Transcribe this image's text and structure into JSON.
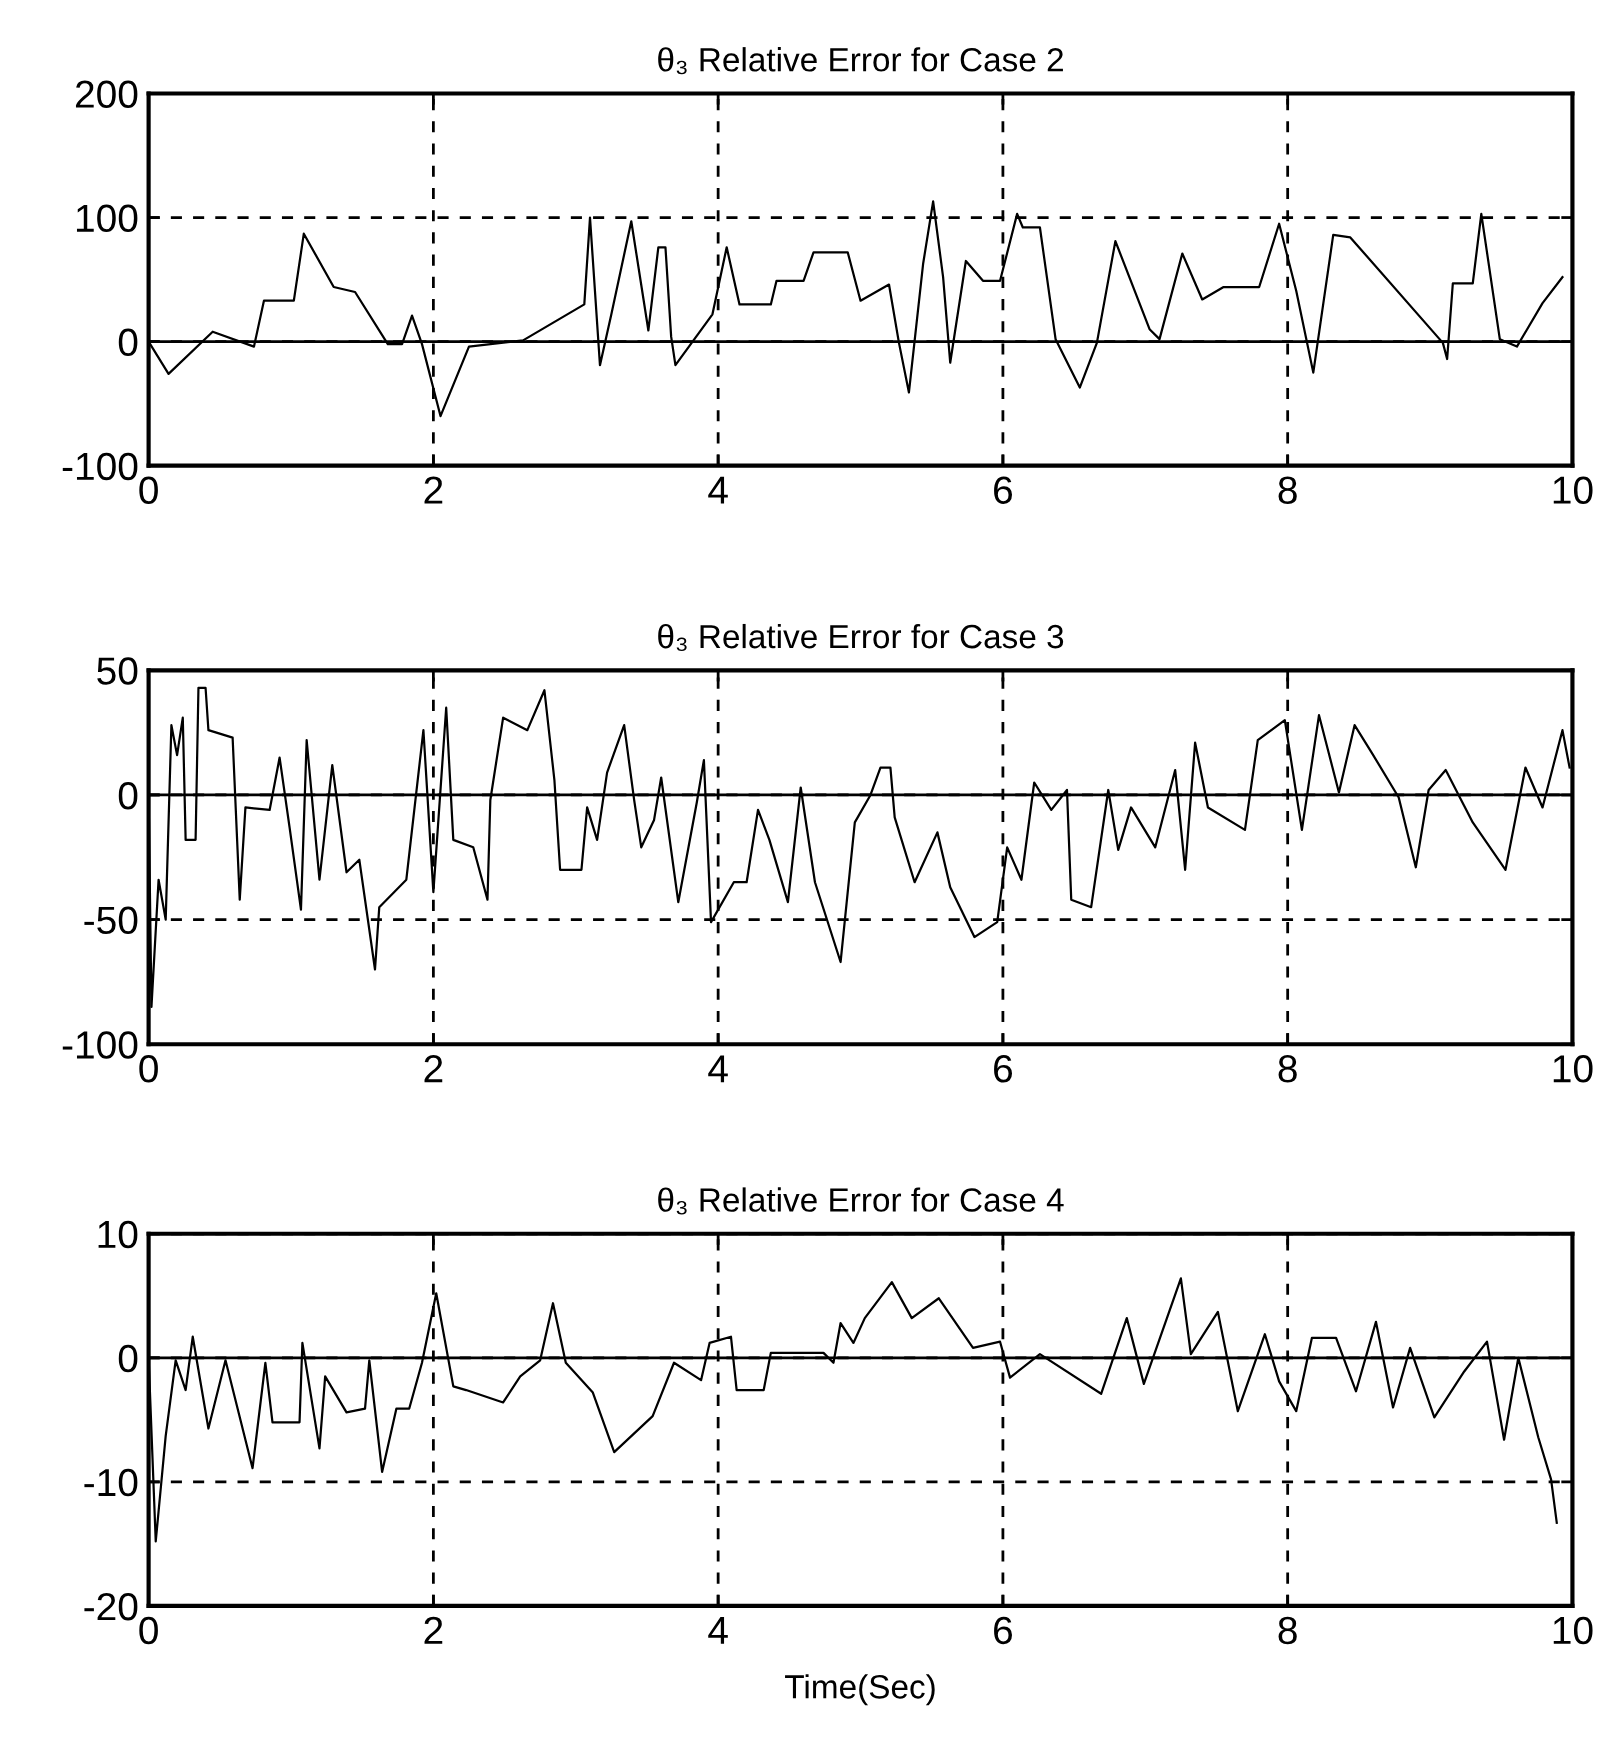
{
  "chart_data": [
    {
      "type": "line",
      "title": "θ₃ Relative Error for Case 2",
      "xlim": [
        0,
        10
      ],
      "xticks": [
        0,
        2,
        4,
        6,
        8,
        10
      ],
      "ylim": [
        -100,
        200
      ],
      "yticks": [
        -100,
        0,
        100,
        200
      ],
      "grid": true,
      "ref_lines": [
        {
          "axis": "y",
          "value": 0,
          "color": "#000000",
          "line_style": "solid"
        }
      ],
      "series": [
        {
          "color": "#000000",
          "x": [
            0,
            0.14,
            0.45,
            0.74,
            0.81,
            1.02,
            1.09,
            1.3,
            1.45,
            1.68,
            1.78,
            1.85,
            1.92,
            2.05,
            2.25,
            2.63,
            3.06,
            3.1,
            3.17,
            3.25,
            3.39,
            3.51,
            3.58,
            3.63,
            3.67,
            3.7,
            3.96,
            4.06,
            4.15,
            4.37,
            4.41,
            4.6,
            4.67,
            4.91,
            5.0,
            5.2,
            5.27,
            5.34,
            5.44,
            5.51,
            5.58,
            5.63,
            5.74,
            5.86,
            5.98,
            6.1,
            6.14,
            6.26,
            6.37,
            6.54,
            6.66,
            6.79,
            7.03,
            7.1,
            7.26,
            7.4,
            7.55,
            7.8,
            7.94,
            8.06,
            8.18,
            8.32,
            8.44,
            9.09,
            9.12,
            9.16,
            9.3,
            9.36,
            9.49,
            9.61,
            9.79,
            9.93
          ],
          "values": [
            0,
            -26,
            8,
            -4,
            33,
            33,
            87,
            44,
            40,
            -2,
            -2,
            21,
            -2,
            -60,
            -4,
            1,
            30,
            100,
            -19,
            22,
            97,
            9,
            76,
            76,
            4,
            -19,
            22,
            76,
            30,
            30,
            49,
            49,
            72,
            72,
            33,
            46,
            -1,
            -41,
            63,
            113,
            52,
            -17,
            65,
            49,
            49,
            103,
            92,
            92,
            2,
            -37,
            -1,
            81,
            10,
            2,
            71,
            34,
            44,
            44,
            95,
            41,
            -25,
            86,
            84,
            -1,
            -14,
            47,
            47,
            103,
            2,
            -4,
            31,
            52
          ]
        }
      ]
    },
    {
      "type": "line",
      "title": "θ₃ Relative Error for Case 3",
      "xlim": [
        0,
        10
      ],
      "xticks": [
        0,
        2,
        4,
        6,
        8,
        10
      ],
      "ylim": [
        -100,
        50
      ],
      "yticks": [
        -100,
        -50,
        0,
        50
      ],
      "grid": true,
      "ref_lines": [
        {
          "axis": "y",
          "value": 0,
          "color": "#000000",
          "line_style": "solid"
        }
      ],
      "series": [
        {
          "color": "#000000",
          "x": [
            0,
            0.02,
            0.07,
            0.12,
            0.16,
            0.2,
            0.24,
            0.26,
            0.33,
            0.35,
            0.4,
            0.42,
            0.59,
            0.64,
            0.68,
            0.85,
            0.92,
            0.99,
            1.07,
            1.11,
            1.2,
            1.29,
            1.39,
            1.48,
            1.59,
            1.62,
            1.81,
            1.93,
            2.0,
            2.09,
            2.14,
            2.28,
            2.38,
            2.4,
            2.49,
            2.66,
            2.78,
            2.85,
            2.89,
            3.04,
            3.08,
            3.15,
            3.22,
            3.34,
            3.41,
            3.46,
            3.55,
            3.6,
            3.72,
            3.85,
            3.9,
            3.95,
            4.11,
            4.2,
            4.28,
            4.36,
            4.49,
            4.58,
            4.68,
            4.86,
            4.96,
            5.07,
            5.14,
            5.21,
            5.24,
            5.38,
            5.54,
            5.63,
            5.8,
            5.96,
            6.03,
            6.13,
            6.22,
            6.34,
            6.45,
            6.48,
            6.62,
            6.74,
            6.81,
            6.9,
            7.07,
            7.21,
            7.28,
            7.35,
            7.44,
            7.7,
            7.79,
            7.98,
            8.1,
            8.22,
            8.36,
            8.47,
            8.59,
            8.78,
            8.9,
            8.99,
            9.11,
            9.3,
            9.53,
            9.67,
            9.79,
            9.93,
            9.98
          ],
          "values": [
            0,
            -85,
            -34,
            -50,
            28,
            16,
            31,
            -18,
            -18,
            43,
            43,
            26,
            23,
            -42,
            -5,
            -6,
            15,
            -13,
            -46,
            22,
            -34,
            12,
            -31,
            -26,
            -70,
            -45,
            -34,
            26,
            -39,
            35,
            -18,
            -21,
            -42,
            -2,
            31,
            26,
            42,
            6,
            -30,
            -30,
            -5,
            -18,
            9,
            28,
            -2,
            -21,
            -10,
            7,
            -43,
            -3,
            14,
            -51,
            -35,
            -35,
            -6,
            -18,
            -43,
            3,
            -35,
            -67,
            -11,
            0,
            11,
            11,
            -9,
            -35,
            -15,
            -37,
            -57,
            -51,
            -21,
            -34,
            5,
            -6,
            2,
            -42,
            -45,
            2,
            -22,
            -5,
            -21,
            10,
            -30,
            21,
            -5,
            -14,
            22,
            30,
            -14,
            32,
            1,
            28,
            17,
            -1,
            -29,
            2,
            10,
            -11,
            -30,
            11,
            -5,
            26,
            11
          ]
        }
      ]
    },
    {
      "type": "line",
      "title": "θ₃ Relative Error for Case 4",
      "xlabel": "Time(Sec)",
      "xlim": [
        0,
        10
      ],
      "xticks": [
        0,
        2,
        4,
        6,
        8,
        10
      ],
      "ylim": [
        -20,
        10
      ],
      "yticks": [
        -20,
        -10,
        0,
        10
      ],
      "grid": true,
      "ref_lines": [
        {
          "axis": "y",
          "value": 0,
          "color": "#000000",
          "line_style": "solid"
        }
      ],
      "series": [
        {
          "color": "#000000",
          "x": [
            0,
            0.05,
            0.12,
            0.19,
            0.26,
            0.31,
            0.42,
            0.54,
            0.73,
            0.82,
            0.87,
            1.06,
            1.08,
            1.2,
            1.24,
            1.39,
            1.52,
            1.55,
            1.64,
            1.74,
            1.83,
            1.92,
            2.02,
            2.14,
            2.23,
            2.49,
            2.61,
            2.75,
            2.84,
            2.93,
            3.12,
            3.27,
            3.54,
            3.69,
            3.88,
            3.94,
            4.09,
            4.13,
            4.32,
            4.37,
            4.74,
            4.81,
            4.86,
            4.95,
            5.03,
            5.22,
            5.36,
            5.55,
            5.79,
            5.98,
            6.05,
            6.26,
            6.69,
            6.87,
            6.99,
            7.25,
            7.32,
            7.51,
            7.65,
            7.84,
            7.94,
            8.06,
            8.17,
            8.34,
            8.48,
            8.62,
            8.74,
            8.86,
            9.03,
            9.24,
            9.4,
            9.52,
            9.62,
            9.76,
            9.85,
            9.89
          ],
          "values": [
            0,
            -14.8,
            -6.3,
            -0.2,
            -2.6,
            1.7,
            -5.7,
            -0.2,
            -8.9,
            -0.4,
            -5.2,
            -5.2,
            1.2,
            -7.3,
            -1.5,
            -4.4,
            -4.1,
            -0.2,
            -9.2,
            -4.1,
            -4.1,
            -0.4,
            5.2,
            -2.3,
            -2.6,
            -3.6,
            -1.5,
            -0.2,
            4.4,
            -0.4,
            -2.8,
            -7.6,
            -4.7,
            -0.4,
            -1.8,
            1.2,
            1.7,
            -2.6,
            -2.6,
            0.4,
            0.4,
            -0.4,
            2.8,
            1.2,
            3.2,
            6.1,
            3.2,
            4.8,
            0.8,
            1.3,
            -1.6,
            0.3,
            -2.9,
            3.2,
            -2.1,
            6.4,
            0.3,
            3.7,
            -4.3,
            1.9,
            -1.9,
            -4.3,
            1.6,
            1.6,
            -2.7,
            2.9,
            -4.0,
            0.8,
            -4.8,
            -1.1,
            1.3,
            -6.6,
            0,
            -6.4,
            -9.8,
            -13.3
          ]
        }
      ]
    }
  ]
}
